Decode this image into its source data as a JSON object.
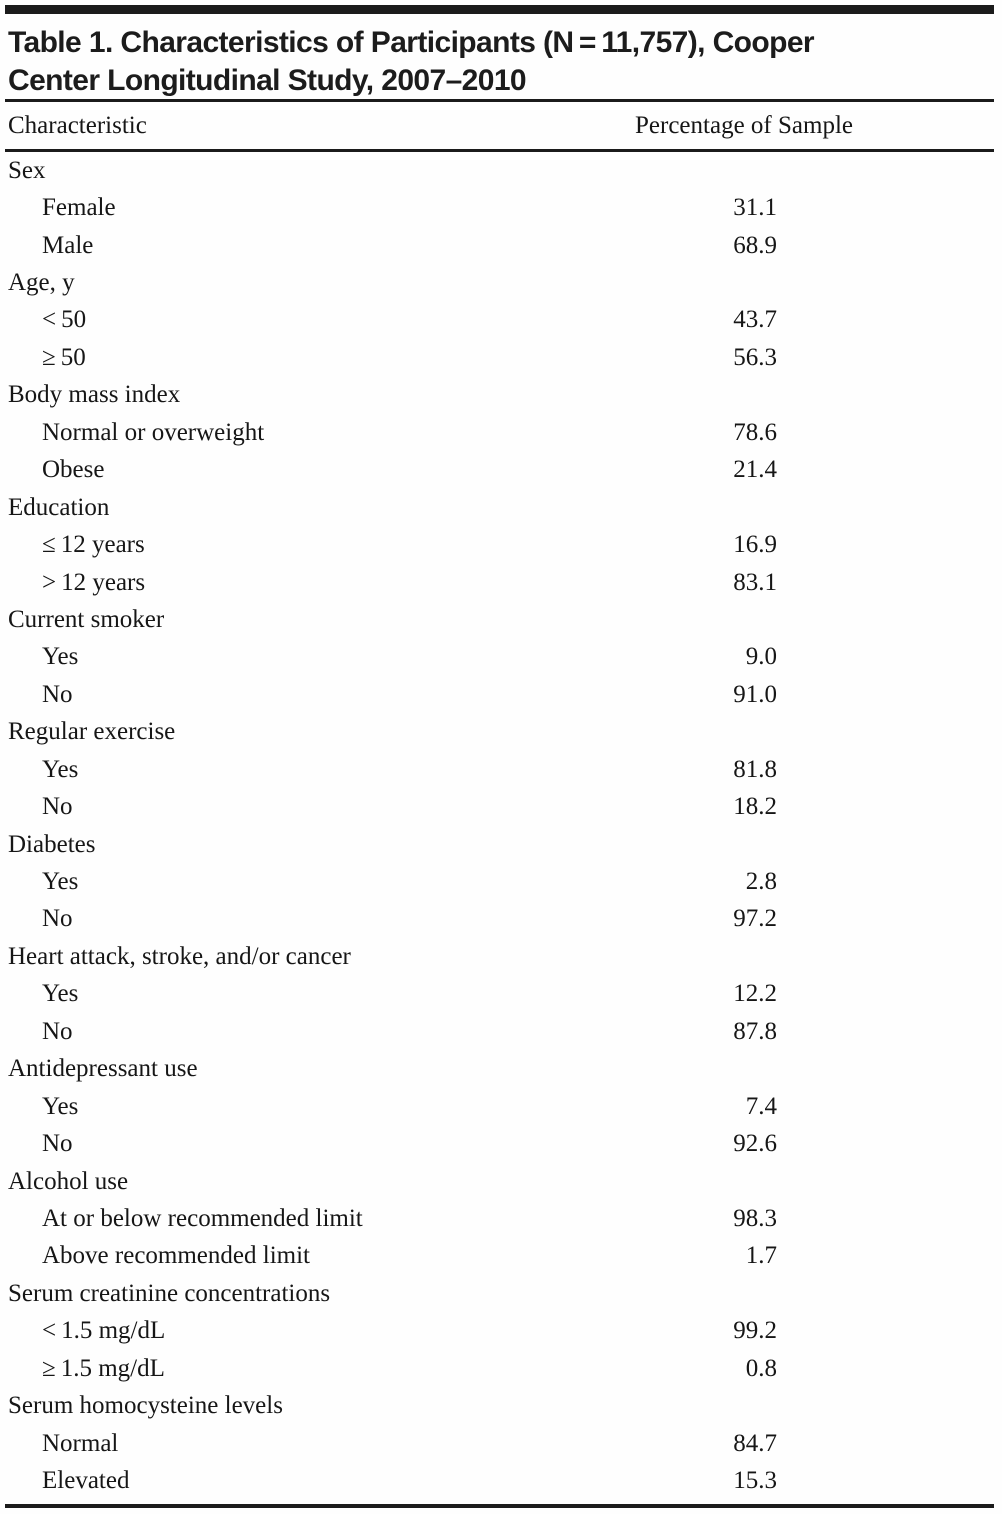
{
  "title": {
    "line1": "Table 1. Characteristics of Participants (N = 11,757), Cooper",
    "line2": "Center Longitudinal Study, 2007–2010"
  },
  "table": {
    "columns": {
      "characteristic": "Characteristic",
      "percentage": "Percentage of Sample"
    },
    "groups": [
      {
        "label": "Sex",
        "rows": [
          {
            "label": "Female",
            "value": "31.1"
          },
          {
            "label": "Male",
            "value": "68.9"
          }
        ]
      },
      {
        "label": "Age, y",
        "rows": [
          {
            "label": "< 50",
            "value": "43.7"
          },
          {
            "label": "≥ 50",
            "value": "56.3"
          }
        ]
      },
      {
        "label": "Body mass index",
        "rows": [
          {
            "label": "Normal or overweight",
            "value": "78.6"
          },
          {
            "label": "Obese",
            "value": "21.4"
          }
        ]
      },
      {
        "label": "Education",
        "rows": [
          {
            "label": "≤ 12 years",
            "value": "16.9"
          },
          {
            "label": "> 12 years",
            "value": "83.1"
          }
        ]
      },
      {
        "label": "Current smoker",
        "rows": [
          {
            "label": "Yes",
            "value": "9.0"
          },
          {
            "label": "No",
            "value": "91.0"
          }
        ]
      },
      {
        "label": "Regular exercise",
        "rows": [
          {
            "label": "Yes",
            "value": "81.8"
          },
          {
            "label": "No",
            "value": "18.2"
          }
        ]
      },
      {
        "label": "Diabetes",
        "rows": [
          {
            "label": "Yes",
            "value": "2.8"
          },
          {
            "label": "No",
            "value": "97.2"
          }
        ]
      },
      {
        "label": "Heart attack, stroke, and/or cancer",
        "rows": [
          {
            "label": "Yes",
            "value": "12.2"
          },
          {
            "label": "No",
            "value": "87.8"
          }
        ]
      },
      {
        "label": "Antidepressant use",
        "rows": [
          {
            "label": "Yes",
            "value": "7.4"
          },
          {
            "label": "No",
            "value": "92.6"
          }
        ]
      },
      {
        "label": "Alcohol use",
        "rows": [
          {
            "label": "At or below recommended limit",
            "value": "98.3"
          },
          {
            "label": "Above recommended limit",
            "value": "1.7"
          }
        ]
      },
      {
        "label": "Serum creatinine concentrations",
        "rows": [
          {
            "label": "< 1.5 mg/dL",
            "value": "99.2"
          },
          {
            "label": "≥ 1.5 mg/dL",
            "value": "0.8"
          }
        ]
      },
      {
        "label": "Serum homocysteine levels",
        "rows": [
          {
            "label": "Normal",
            "value": "84.7"
          },
          {
            "label": "Elevated",
            "value": "15.3"
          }
        ]
      }
    ]
  }
}
